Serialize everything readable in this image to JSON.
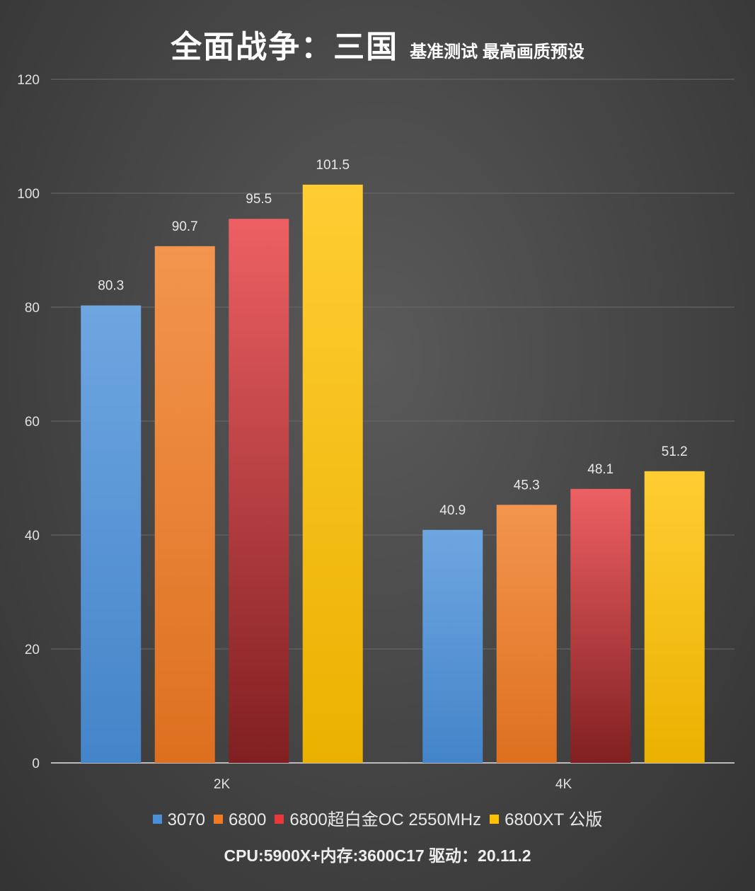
{
  "chart_data": {
    "type": "bar",
    "title": "全面战争：三国",
    "subtitle": "基准测试 最高画质预设",
    "categories": [
      "2K",
      "4K"
    ],
    "series": [
      {
        "name": "3070",
        "values": [
          80.3,
          40.9
        ],
        "color": "#4a90d9"
      },
      {
        "name": "6800",
        "values": [
          90.7,
          45.3
        ],
        "color": "#f07a22"
      },
      {
        "name": "6800超白金OC 2550MHz",
        "values": [
          95.5,
          48.1
        ],
        "color": "#e8383c"
      },
      {
        "name": "6800XT 公版",
        "values": [
          101.5,
          51.2
        ],
        "color": "#ffc000"
      }
    ],
    "ylim": [
      0,
      120
    ],
    "yticks": [
      0,
      20,
      40,
      60,
      80,
      100,
      120
    ],
    "xlabel": "",
    "ylabel": "",
    "grid": true,
    "legend_position": "bottom"
  },
  "footer": "CPU:5900X+内存:3600C17 驱动：20.11.2"
}
